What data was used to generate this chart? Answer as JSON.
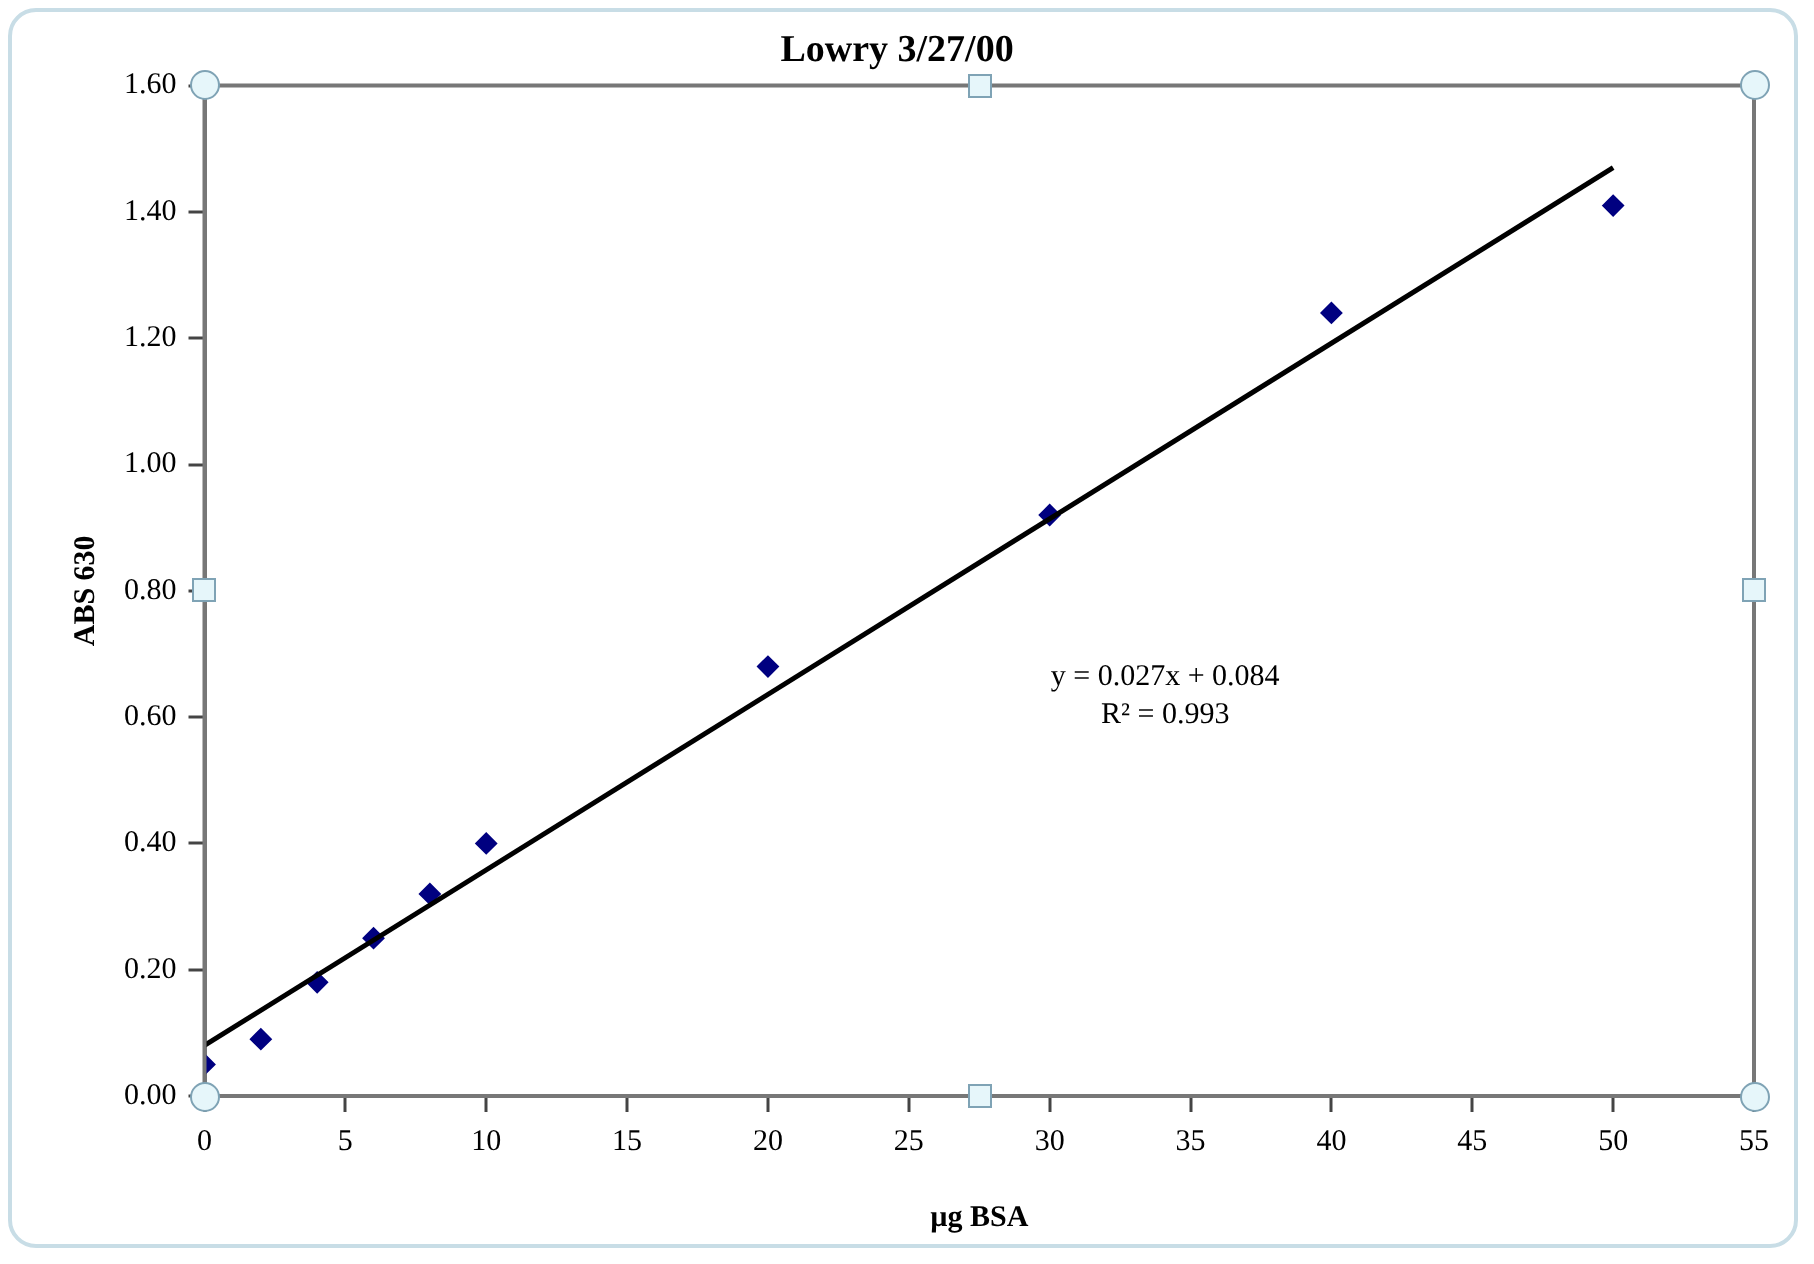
{
  "chart_data": {
    "type": "scatter",
    "title": "Lowry 3/27/00",
    "xlabel": "µg BSA",
    "ylabel": "ABS 630",
    "series": [
      {
        "color": "#000080",
        "marker": "diamond",
        "x": [
          0,
          2,
          4,
          6,
          8,
          10,
          20,
          30,
          40,
          50
        ],
        "values": [
          0.05,
          0.09,
          0.18,
          0.25,
          0.32,
          0.4,
          0.68,
          0.92,
          1.24,
          1.41
        ]
      },
      {
        "type": "line",
        "marker": "none",
        "color": "#000000",
        "x": [
          0,
          50
        ],
        "values": [
          0.08,
          1.47
        ]
      }
    ],
    "xlim": [
      0,
      55
    ],
    "xticks": [
      0,
      5,
      10,
      15,
      20,
      25,
      30,
      35,
      40,
      45,
      50,
      55
    ],
    "ylim": [
      0,
      1.6
    ],
    "yticks": [
      {
        "value": 0,
        "label": "0.00"
      },
      {
        "value": 0.2,
        "label": "0.20"
      },
      {
        "value": 0.4,
        "label": "0.40"
      },
      {
        "value": 0.6,
        "label": "0.60"
      },
      {
        "value": 0.8,
        "label": "0.80"
      },
      {
        "value": 1.0,
        "label": "1.00"
      },
      {
        "value": 1.2,
        "label": "1.20"
      },
      {
        "value": 1.4,
        "label": "1.40"
      },
      {
        "value": 1.6,
        "label": "1.60"
      }
    ],
    "annotations": [
      "y = 0.027x + 0.084",
      "R² = 0.993"
    ],
    "grid": false,
    "legend": false
  }
}
